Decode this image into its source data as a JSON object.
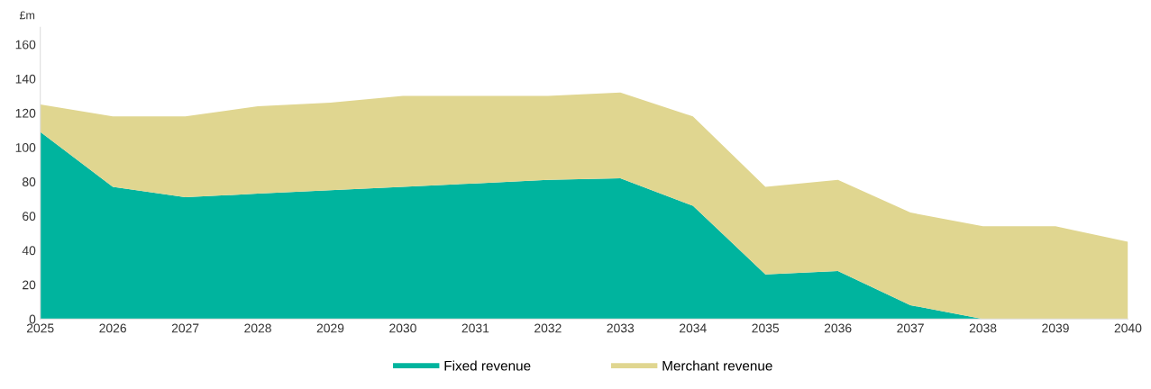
{
  "chart_data": {
    "type": "area",
    "stacked": true,
    "ylabel": "£m",
    "x": [
      2025,
      2026,
      2027,
      2028,
      2029,
      2030,
      2031,
      2032,
      2033,
      2034,
      2035,
      2036,
      2037,
      2038,
      2039,
      2040
    ],
    "series": [
      {
        "name": "Fixed revenue",
        "color": "#00b49e",
        "values": [
          109,
          77,
          71,
          73,
          75,
          77,
          79,
          81,
          82,
          66,
          26,
          28,
          8,
          0,
          0,
          0
        ]
      },
      {
        "name": "Merchant revenue",
        "color": "#e0d690",
        "values": [
          16,
          41,
          47,
          51,
          51,
          53,
          51,
          49,
          50,
          52,
          51,
          53,
          54,
          54,
          54,
          45
        ]
      }
    ],
    "xlim": [
      2025,
      2040
    ],
    "xticks": [
      2025,
      2026,
      2027,
      2028,
      2029,
      2030,
      2031,
      2032,
      2033,
      2034,
      2035,
      2036,
      2037,
      2038,
      2039,
      2040
    ],
    "ylim": [
      0,
      170
    ],
    "yticks": [
      0,
      20,
      40,
      60,
      80,
      100,
      120,
      140,
      160
    ],
    "grid": false,
    "legend": "bottom"
  }
}
